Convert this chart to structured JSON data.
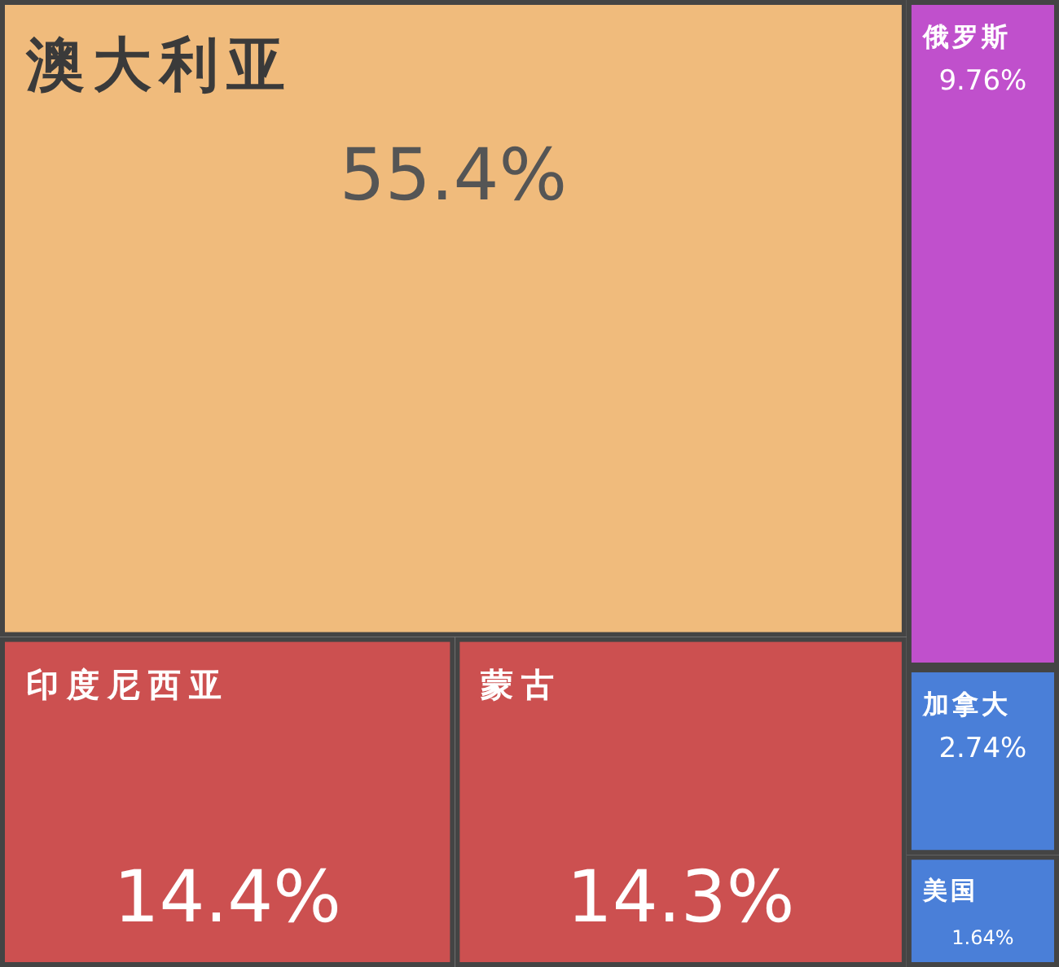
{
  "chart_data": {
    "type": "other",
    "categories": [
      "澳大利亚",
      "印度尼西亚",
      "蒙古",
      "俄罗斯",
      "加拿大",
      "美国"
    ],
    "values": [
      55.4,
      14.4,
      14.3,
      9.76,
      2.74,
      1.64
    ],
    "value_labels": [
      "55.4%",
      "14.4%",
      "14.3%",
      "9.76%",
      "2.74%",
      "1.64%"
    ],
    "colors": [
      "#f0bb7c",
      "#cc5050",
      "#cc5050",
      "#c050cc",
      "#4a7fd8",
      "#4a7fd8"
    ]
  }
}
